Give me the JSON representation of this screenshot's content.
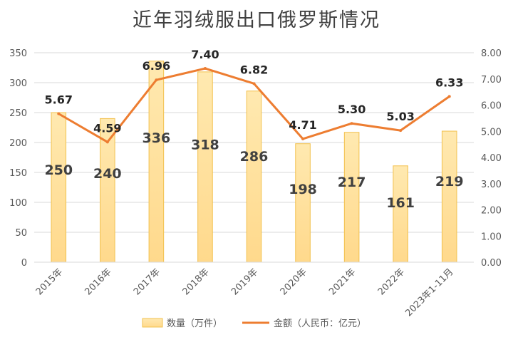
{
  "chart_data": {
    "type": "bar",
    "title": "近年羽绒服出口俄罗斯情况",
    "categories": [
      "2015年",
      "2016年",
      "2017年",
      "2018年",
      "2019年",
      "2020年",
      "2021年",
      "2022年",
      "2023年1-11月"
    ],
    "series": [
      {
        "name": "数量（万件）",
        "type": "bar",
        "axis": "left",
        "color": "#FFD98C",
        "values": [
          250,
          240,
          336,
          318,
          286,
          198,
          217,
          161,
          219
        ]
      },
      {
        "name": "金额（人民币：亿元）",
        "type": "line",
        "axis": "right",
        "color": "#ED7D31",
        "values": [
          5.67,
          4.59,
          6.96,
          7.4,
          6.82,
          4.71,
          5.3,
          5.03,
          6.33
        ]
      }
    ],
    "bar_labels": [
      "250",
      "240",
      "336",
      "318",
      "286",
      "198",
      "217",
      "161",
      "219"
    ],
    "line_labels": [
      "5.67",
      "4.59",
      "6.96",
      "7.40",
      "6.82",
      "4.71",
      "5.30",
      "5.03",
      "6.33"
    ],
    "y_left": {
      "ylim": [
        0,
        350
      ],
      "ticks": [
        "0",
        "50",
        "100",
        "150",
        "200",
        "250",
        "300",
        "350"
      ]
    },
    "y_right": {
      "ylim": [
        0,
        8
      ],
      "ticks": [
        "0.00",
        "1.00",
        "2.00",
        "3.00",
        "4.00",
        "5.00",
        "6.00",
        "7.00",
        "8.00"
      ]
    },
    "grid": true,
    "legend_position": "bottom"
  }
}
